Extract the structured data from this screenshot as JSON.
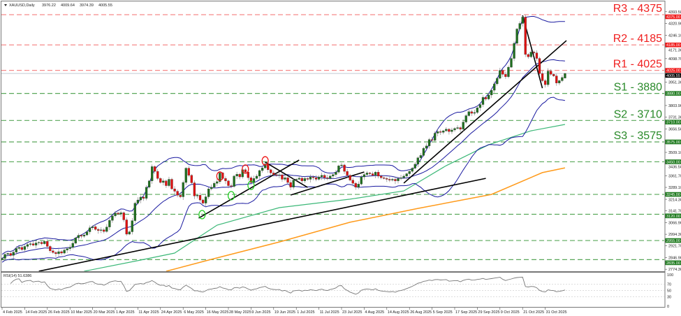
{
  "header": {
    "symbol": "XAUUSD,Daily",
    "open": "3976.22",
    "high": "4009.64",
    "low": "3974.39",
    "close": "4005.55",
    "menu_icon": "triangle-down-icon"
  },
  "rsi_label": "RSI(14) 51.6386",
  "colors": {
    "bull": "#1f6f1f",
    "bear": "#e01010",
    "resistance": "#f02020",
    "support": "#2a8a2a",
    "bands": "#1a1aa0",
    "ma_green": "#3cb878",
    "ma_orange": "#ff9a1a",
    "trend": "#000000"
  },
  "chart_data": {
    "type": "candlestick",
    "title": "XAUUSD,Daily",
    "ylim": [
      2774.3,
      4393.5
    ],
    "price_ticks": [
      "4393.50",
      "4320.90",
      "4246.10",
      "4171.30",
      "4098.70",
      "3951.30",
      "3803.90",
      "3731.30",
      "3656.50",
      "3509.10",
      "3436.50",
      "3361.70",
      "3289.10",
      "3214.30",
      "3141.70",
      "3066.90",
      "2994.30",
      "2921.70",
      "2846.90",
      "2774.30"
    ],
    "current_price": "4005.55",
    "levels": [
      {
        "price": 4375,
        "tag": "4375.00",
        "label": "R3 - 4375",
        "kind": "resistance"
      },
      {
        "price": 4185,
        "tag": "4185.00",
        "label": "R2 - 4185",
        "kind": "resistance"
      },
      {
        "price": 4025,
        "tag": "4025.00",
        "label": "R1 - 4025",
        "kind": "resistance"
      },
      {
        "price": 3880,
        "tag": "3880.00",
        "label": "S1 - 3880",
        "kind": "support"
      },
      {
        "price": 3710,
        "tag": "3710.00",
        "label": "S2 - 3710",
        "kind": "support"
      },
      {
        "price": 3575,
        "tag": "3575.00",
        "label": "S3 - 3575",
        "kind": "support"
      },
      {
        "price": 3450,
        "tag": "3450.00",
        "label": "",
        "kind": "support"
      },
      {
        "price": 3245,
        "tag": "3245.00",
        "label": "",
        "kind": "support"
      },
      {
        "price": 3120,
        "tag": "3120.00",
        "label": "",
        "kind": "support"
      },
      {
        "price": 2955,
        "tag": "2955.00",
        "label": "",
        "kind": "support"
      },
      {
        "price": 2835,
        "tag": "2835.00",
        "label": "",
        "kind": "support"
      }
    ],
    "date_labels": [
      {
        "bar": 0,
        "text": "4 Feb 2025"
      },
      {
        "bar": 8,
        "text": "14 Feb 2025"
      },
      {
        "bar": 16,
        "text": "26 Feb 2025"
      },
      {
        "bar": 24,
        "text": "10 Mar 2025"
      },
      {
        "bar": 32,
        "text": "20 Mar 2025"
      },
      {
        "bar": 40,
        "text": "1 Apr 2025"
      },
      {
        "bar": 48,
        "text": "11 Apr 2025"
      },
      {
        "bar": 56,
        "text": "24 Apr 2025"
      },
      {
        "bar": 64,
        "text": "6 May 2025"
      },
      {
        "bar": 72,
        "text": "16 May 2025"
      },
      {
        "bar": 80,
        "text": "28 May 2025"
      },
      {
        "bar": 88,
        "text": "9 Jun 2025"
      },
      {
        "bar": 96,
        "text": "19 Jun 2025"
      },
      {
        "bar": 104,
        "text": "1 Jul 2025"
      },
      {
        "bar": 112,
        "text": "11 Jul 2025"
      },
      {
        "bar": 120,
        "text": "23 Jul 2025"
      },
      {
        "bar": 128,
        "text": "4 Aug 2025"
      },
      {
        "bar": 136,
        "text": "14 Aug 2025"
      },
      {
        "bar": 144,
        "text": "26 Aug 2025"
      },
      {
        "bar": 152,
        "text": "5 Sep 2025"
      },
      {
        "bar": 160,
        "text": "17 Sep 2025"
      },
      {
        "bar": 168,
        "text": "29 Sep 2025"
      },
      {
        "bar": 176,
        "text": "9 Oct 2025"
      },
      {
        "bar": 184,
        "text": "21 Oct 2025"
      },
      {
        "bar": 192,
        "text": "31 Oct 2025"
      }
    ],
    "closes": [
      2843,
      2868,
      2874,
      2862,
      2882,
      2905,
      2912,
      2898,
      2918,
      2930,
      2935,
      2926,
      2940,
      2944,
      2935,
      2950,
      2918,
      2890,
      2880,
      2872,
      2885,
      2876,
      2895,
      2904,
      2912,
      2938,
      2972,
      2988,
      2982,
      2990,
      3010,
      3035,
      3042,
      3025,
      3018,
      3022,
      3012,
      3040,
      3082,
      3110,
      3128,
      3122,
      3130,
      3085,
      2995,
      3010,
      3080,
      3190,
      3210,
      3228,
      3220,
      3290,
      3330,
      3420,
      3390,
      3345,
      3320,
      3330,
      3300,
      3340,
      3280,
      3265,
      3240,
      3230,
      3320,
      3410,
      3365,
      3318,
      3235,
      3240,
      3210,
      3190,
      3230,
      3280,
      3290,
      3315,
      3325,
      3380,
      3345,
      3330,
      3300,
      3295,
      3360,
      3372,
      3355,
      3400,
      3385,
      3350,
      3320,
      3345,
      3360,
      3395,
      3412,
      3436,
      3400,
      3380,
      3370,
      3365,
      3368,
      3340,
      3350,
      3320,
      3290,
      3335,
      3340,
      3347,
      3330,
      3345,
      3340,
      3355,
      3350,
      3340,
      3355,
      3365,
      3350,
      3345,
      3360,
      3370,
      3385,
      3425,
      3430,
      3390,
      3365,
      3335,
      3315,
      3290,
      3310,
      3355,
      3370,
      3380,
      3375,
      3365,
      3385,
      3360,
      3350,
      3345,
      3340,
      3335,
      3340,
      3330,
      3345,
      3350,
      3360,
      3375,
      3390,
      3410,
      3435,
      3475,
      3490,
      3535,
      3550,
      3590,
      3585,
      3630,
      3640,
      3635,
      3645,
      3655,
      3640,
      3650,
      3660,
      3665,
      3655,
      3700,
      3740,
      3765,
      3755,
      3760,
      3790,
      3810,
      3855,
      3845,
      3870,
      3900,
      3940,
      3975,
      4025,
      4000,
      3985,
      4045,
      4100,
      4195,
      4285,
      4320,
      4360,
      4125,
      4110,
      4140,
      4135,
      4100,
      4005,
      3960,
      3935,
      4020,
      4000,
      3990,
      3945,
      3960,
      3980,
      4005.55
    ],
    "ma_green": [
      [
        29,
        2762
      ],
      [
        49,
        2832
      ],
      [
        61,
        2876
      ],
      [
        76,
        3052
      ],
      [
        98,
        3162
      ],
      [
        123,
        3215
      ],
      [
        142,
        3267
      ],
      [
        157,
        3426
      ],
      [
        172,
        3557
      ],
      [
        187,
        3645
      ],
      [
        199,
        3685
      ]
    ],
    "ma_orange": [
      [
        58,
        2762
      ],
      [
        73,
        2832
      ],
      [
        98,
        2946
      ],
      [
        123,
        3070
      ],
      [
        147,
        3157
      ],
      [
        173,
        3245
      ],
      [
        191,
        3382
      ],
      [
        199,
        3412
      ]
    ],
    "bollinger": {
      "period": 20,
      "deviations": 2
    },
    "rsi": {
      "period": 14,
      "levels": [
        70,
        50,
        30
      ],
      "axis_ticks": [
        "100",
        "70",
        "50",
        "30",
        "0"
      ]
    },
    "trendlines": [
      [
        [
          13,
          2762
        ],
        [
          171,
          3346
        ]
      ],
      [
        [
          69.5,
          3096
        ],
        [
          105,
          3461
        ]
      ],
      [
        [
          93,
          3448
        ],
        [
          108,
          3289
        ]
      ],
      [
        [
          102,
          3241
        ],
        [
          128,
          3386
        ]
      ],
      [
        [
          142,
          3316
        ],
        [
          199.5,
          4212
        ]
      ],
      [
        [
          184,
          4371
        ],
        [
          191,
          3913
        ]
      ]
    ],
    "annotations": [
      {
        "bar": 70.7,
        "price": 3118,
        "kind": "support-touch"
      },
      {
        "bar": 81,
        "price": 3237,
        "kind": "support-touch"
      },
      {
        "bar": 88,
        "price": 3302,
        "kind": "support-touch"
      },
      {
        "bar": 77,
        "price": 3360,
        "kind": "resistance-touch"
      },
      {
        "bar": 86,
        "price": 3404,
        "kind": "resistance-touch"
      },
      {
        "bar": 93,
        "price": 3456,
        "kind": "resistance-touch"
      }
    ]
  }
}
